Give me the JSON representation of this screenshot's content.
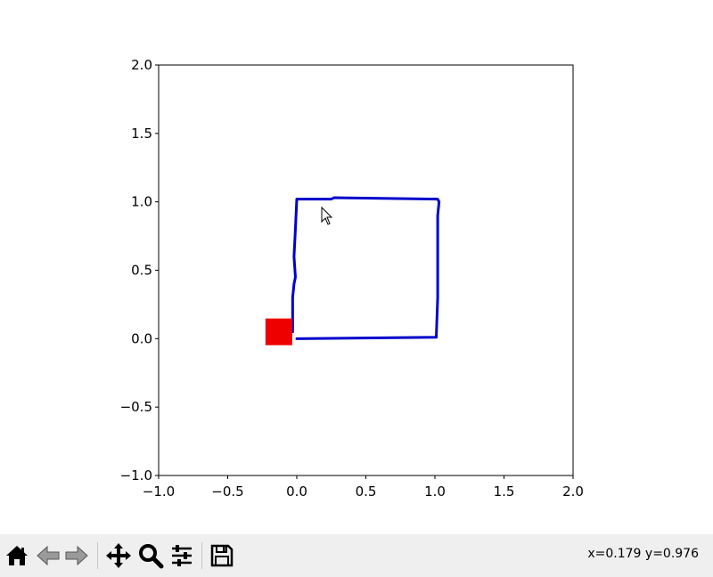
{
  "chart_data": {
    "type": "line",
    "title": "",
    "xlabel": "",
    "ylabel": "",
    "xlim": [
      -1.0,
      2.0
    ],
    "ylim": [
      -1.0,
      2.0
    ],
    "x_ticks": [
      "−1.0",
      "−0.5",
      "0.0",
      "0.5",
      "1.0",
      "1.5",
      "2.0"
    ],
    "y_ticks": [
      "−1.0",
      "−0.5",
      "0.0",
      "0.5",
      "1.0",
      "1.5",
      "2.0"
    ],
    "grid": false,
    "series": [
      {
        "color": "#0000cc",
        "x": [
          -0.03,
          -0.03,
          -0.02,
          -0.01,
          -0.02,
          -0.01,
          0.0,
          0.25,
          0.27,
          1.02,
          1.03,
          1.02,
          1.02,
          1.01,
          1.01,
          0.0
        ],
        "y": [
          0.05,
          0.3,
          0.4,
          0.45,
          0.6,
          0.8,
          1.02,
          1.02,
          1.03,
          1.02,
          1.0,
          0.9,
          0.3,
          0.02,
          0.01,
          0.0
        ]
      }
    ],
    "marker": {
      "shape": "square",
      "color": "#ee0000",
      "x": -0.13,
      "y": 0.05
    }
  },
  "toolbar": {
    "buttons": [
      {
        "name": "home-icon",
        "label": "Home"
      },
      {
        "name": "back-icon",
        "label": "Back"
      },
      {
        "name": "forward-icon",
        "label": "Forward"
      },
      {
        "name": "pan-icon",
        "label": "Pan"
      },
      {
        "name": "zoom-icon",
        "label": "Zoom"
      },
      {
        "name": "configure-subplots-icon",
        "label": "Configure subplots"
      },
      {
        "name": "save-icon",
        "label": "Save"
      }
    ],
    "coords": "x=0.179 y=0.976"
  }
}
